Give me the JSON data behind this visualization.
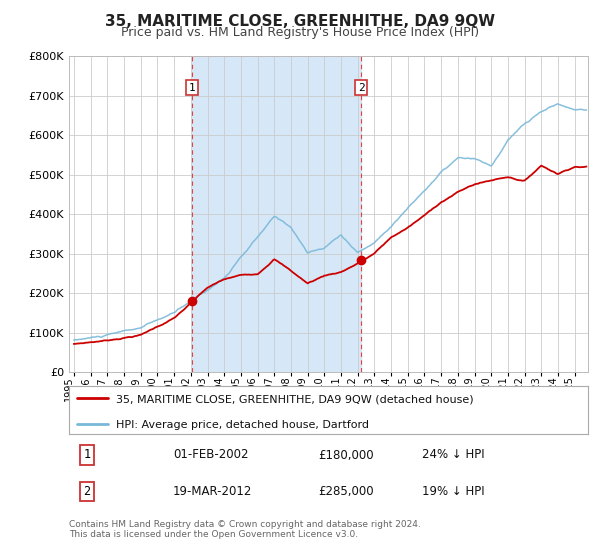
{
  "title": "35, MARITIME CLOSE, GREENHITHE, DA9 9QW",
  "subtitle": "Price paid vs. HM Land Registry's House Price Index (HPI)",
  "title_fontsize": 11,
  "subtitle_fontsize": 9,
  "ylim": [
    0,
    800000
  ],
  "yticks": [
    0,
    100000,
    200000,
    300000,
    400000,
    500000,
    600000,
    700000,
    800000
  ],
  "xlim_start": 1994.7,
  "xlim_end": 2025.8,
  "xtick_years": [
    1995,
    1996,
    1997,
    1998,
    1999,
    2000,
    2001,
    2002,
    2003,
    2004,
    2005,
    2006,
    2007,
    2008,
    2009,
    2010,
    2011,
    2012,
    2013,
    2014,
    2015,
    2016,
    2017,
    2018,
    2019,
    2020,
    2021,
    2022,
    2023,
    2024,
    2025
  ],
  "sale1_date": 2002.083,
  "sale1_price": 180000,
  "sale1_label": "1",
  "sale2_date": 2012.21,
  "sale2_price": 285000,
  "sale2_label": "2",
  "shade_color": "#d6e8f7",
  "hpi_color": "#7ab8d9",
  "price_color": "#cc0000",
  "grid_color": "#cccccc",
  "bg_color": "#ffffff",
  "legend_label_price": "35, MARITIME CLOSE, GREENHITHE, DA9 9QW (detached house)",
  "legend_label_hpi": "HPI: Average price, detached house, Dartford",
  "table_row1": [
    "1",
    "01-FEB-2002",
    "£180,000",
    "24% ↓ HPI"
  ],
  "table_row2": [
    "2",
    "19-MAR-2012",
    "£285,000",
    "19% ↓ HPI"
  ],
  "footnote1": "Contains HM Land Registry data © Crown copyright and database right 2024.",
  "footnote2": "This data is licensed under the Open Government Licence v3.0.",
  "hpi_years_key": [
    1995,
    1997,
    1999,
    2001,
    2002,
    2004,
    2007,
    2008,
    2009,
    2010,
    2011,
    2012,
    2013,
    2014,
    2015,
    2016,
    2017,
    2018,
    2019,
    2020,
    2021,
    2022,
    2023,
    2024,
    2025
  ],
  "hpi_vals_key": [
    82000,
    93000,
    110000,
    145000,
    175000,
    235000,
    385000,
    360000,
    295000,
    305000,
    340000,
    295000,
    320000,
    365000,
    410000,
    455000,
    500000,
    535000,
    530000,
    510000,
    575000,
    615000,
    645000,
    665000,
    650000
  ],
  "price_years_key": [
    1995,
    1997,
    1999,
    2001,
    2002.083,
    2003,
    2004,
    2005,
    2006,
    2007,
    2008,
    2009,
    2010,
    2011,
    2012.21,
    2013,
    2014,
    2015,
    2016,
    2017,
    2018,
    2019,
    2020,
    2021,
    2022,
    2023,
    2024,
    2025
  ],
  "price_vals_key": [
    72000,
    82000,
    97000,
    140000,
    180000,
    215000,
    235000,
    245000,
    250000,
    290000,
    260000,
    228000,
    248000,
    258000,
    285000,
    305000,
    345000,
    370000,
    400000,
    435000,
    460000,
    480000,
    490000,
    500000,
    490000,
    530000,
    510000,
    530000
  ]
}
